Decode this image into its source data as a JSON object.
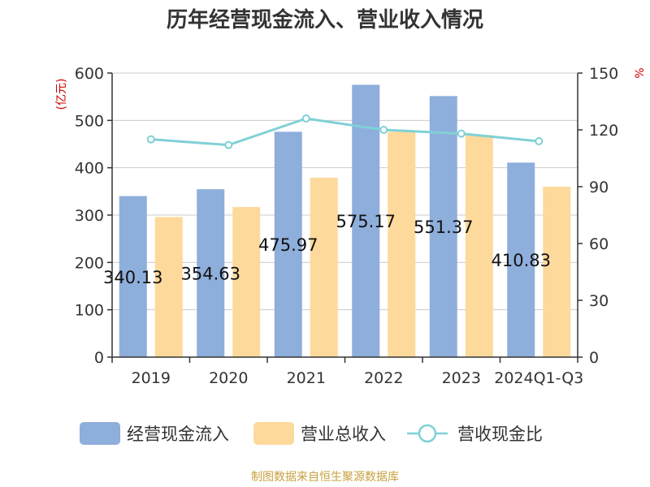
{
  "chart_data": {
    "type": "bar",
    "title": "历年经营现金流入、营业收入情况",
    "categories": [
      "2019",
      "2020",
      "2021",
      "2022",
      "2023",
      "2024Q1-Q3"
    ],
    "series": [
      {
        "name": "经营现金流入",
        "type": "bar",
        "axis": "left",
        "color": "#8eaedb",
        "values": [
          340.13,
          354.63,
          475.97,
          575.17,
          551.37,
          410.83
        ],
        "labels": [
          "340.13",
          "354.63",
          "475.97",
          "575.17",
          "551.37",
          "410.83"
        ]
      },
      {
        "name": "营业总收入",
        "type": "bar",
        "axis": "left",
        "color": "#fdd99b",
        "values": [
          296,
          317,
          379,
          476,
          469,
          360
        ]
      },
      {
        "name": "营收现金比",
        "type": "line",
        "axis": "right",
        "color": "#7fd1d6",
        "values": [
          115,
          112,
          126,
          120,
          118,
          114
        ]
      }
    ],
    "y_left": {
      "unit": "(亿元)",
      "ylim": [
        0,
        600
      ],
      "ticks": [
        "0",
        "100",
        "200",
        "300",
        "400",
        "500",
        "600"
      ]
    },
    "y_right": {
      "unit": "%",
      "ylim": [
        0,
        150
      ],
      "ticks": [
        "0",
        "30",
        "60",
        "90",
        "120",
        "150"
      ]
    },
    "grid": true,
    "legend_position": "bottom"
  },
  "footer": {
    "source": "制图数据来自恒生聚源数据库"
  }
}
